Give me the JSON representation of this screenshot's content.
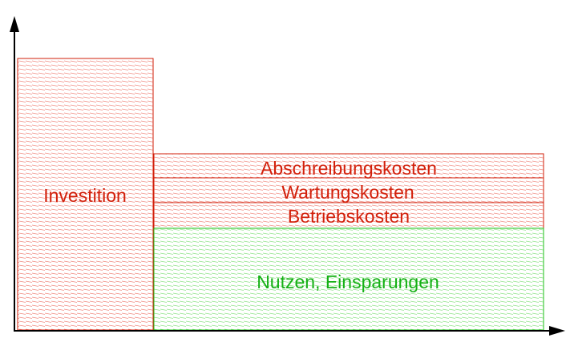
{
  "colors": {
    "axis": "#000000",
    "cost_stroke": "#d21f0a",
    "cost_hatch": "#f08a80",
    "benefit_stroke": "#1fc21a",
    "benefit_hatch": "#8fe38a",
    "cost_text": "#d21f0a",
    "benefit_text": "#14b014"
  },
  "blocks": {
    "investment": {
      "label": "Investition"
    },
    "depreciation": {
      "label": "Abschreibungskosten"
    },
    "maintenance": {
      "label": "Wartungskosten"
    },
    "operating": {
      "label": "Betriebskosten"
    },
    "benefit": {
      "label": "Nutzen, Einsparungen"
    }
  }
}
